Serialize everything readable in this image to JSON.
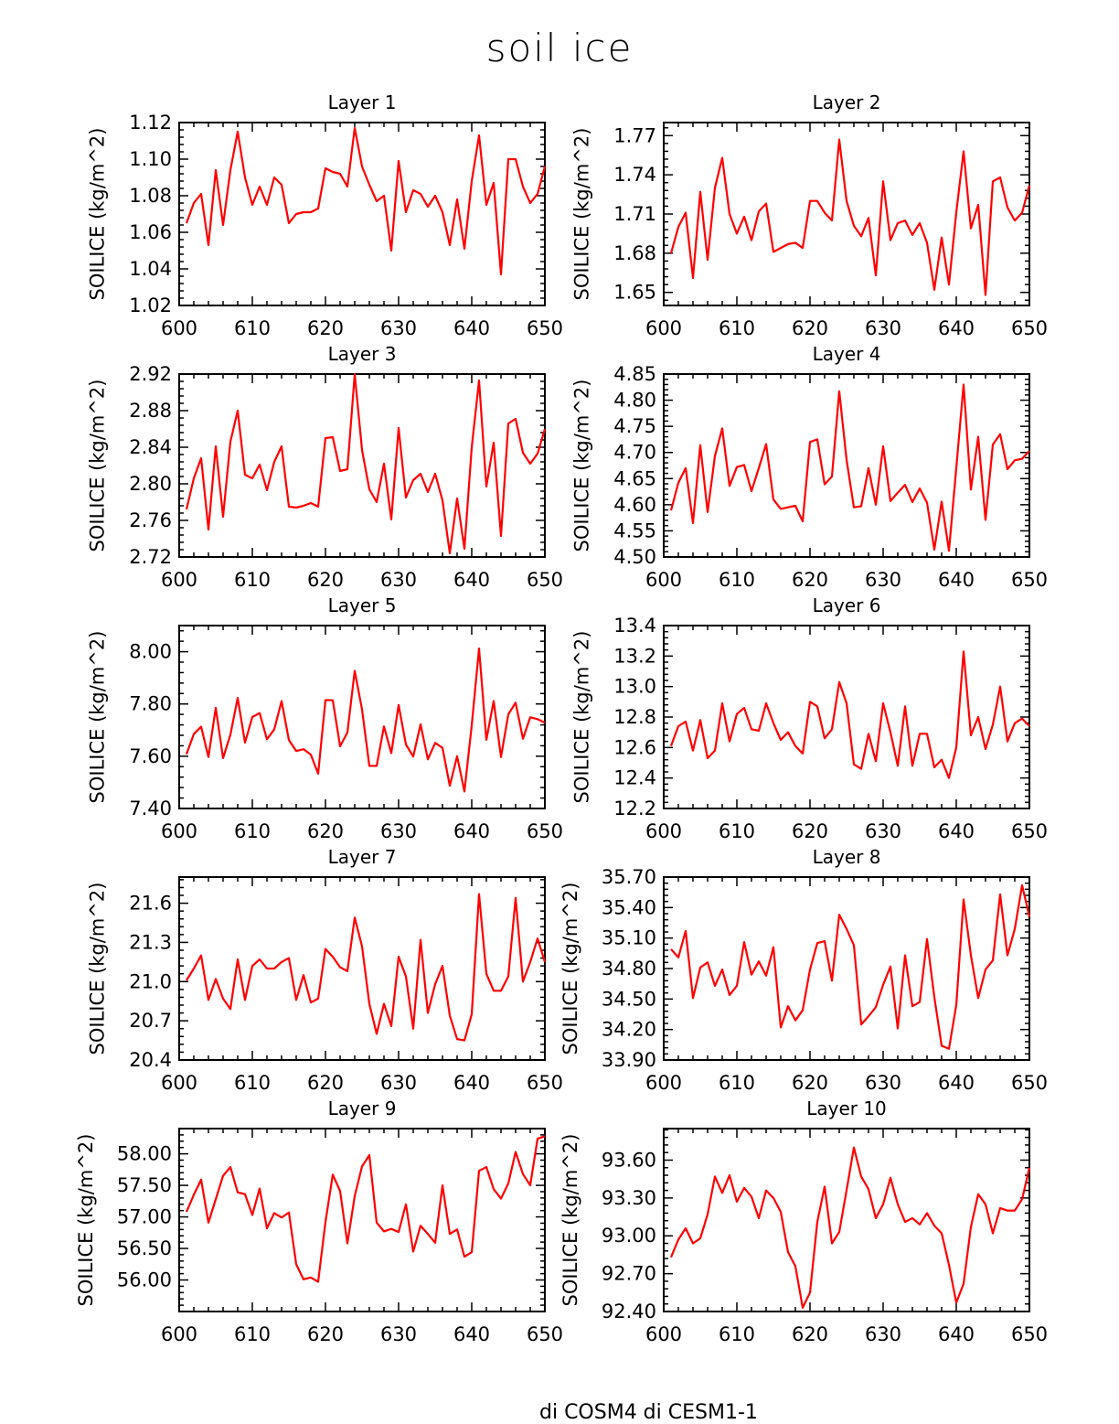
{
  "title": "soil ice",
  "legend_text": "di COSM4     di CESM1-1",
  "colors": {
    "line": "#ff0000",
    "axis": "#000000"
  },
  "chart_data": [
    {
      "type": "line",
      "title": "Layer 1",
      "xlabel": "",
      "ylabel": "SOILICE   (kg/m^2)",
      "xlim": [
        600,
        650
      ],
      "ylim": [
        1.02,
        1.12
      ],
      "xticks": [
        600,
        610,
        620,
        630,
        640,
        650
      ],
      "yticks": [
        1.02,
        1.04,
        1.06,
        1.08,
        1.1,
        1.12
      ],
      "ytick_labels": [
        "1.02",
        "1.04",
        "1.06",
        "1.08",
        "1.10",
        "1.12"
      ],
      "x_start": 601,
      "values": [
        1.065,
        1.076,
        1.081,
        1.053,
        1.094,
        1.064,
        1.094,
        1.115,
        1.09,
        1.075,
        1.085,
        1.075,
        1.09,
        1.086,
        1.065,
        1.07,
        1.071,
        1.071,
        1.073,
        1.095,
        1.093,
        1.092,
        1.085,
        1.117,
        1.096,
        1.086,
        1.077,
        1.08,
        1.05,
        1.099,
        1.071,
        1.083,
        1.081,
        1.074,
        1.08,
        1.071,
        1.053,
        1.078,
        1.051,
        1.088,
        1.113,
        1.075,
        1.087,
        1.037,
        1.1,
        1.1,
        1.085,
        1.076,
        1.081,
        1.096
      ]
    },
    {
      "type": "line",
      "title": "Layer 2",
      "xlabel": "",
      "ylabel": "SOILICE   (kg/m^2)",
      "xlim": [
        600,
        650
      ],
      "ylim": [
        1.64,
        1.78
      ],
      "xticks": [
        600,
        610,
        620,
        630,
        640,
        650
      ],
      "yticks": [
        1.65,
        1.68,
        1.71,
        1.74,
        1.77
      ],
      "ytick_labels": [
        "1.65",
        "1.68",
        "1.71",
        "1.74",
        "1.77"
      ],
      "x_start": 601,
      "values": [
        1.68,
        1.7,
        1.711,
        1.661,
        1.727,
        1.675,
        1.73,
        1.753,
        1.71,
        1.695,
        1.708,
        1.69,
        1.712,
        1.718,
        1.681,
        1.684,
        1.687,
        1.688,
        1.684,
        1.72,
        1.72,
        1.711,
        1.705,
        1.767,
        1.72,
        1.701,
        1.693,
        1.707,
        1.663,
        1.735,
        1.69,
        1.703,
        1.705,
        1.694,
        1.703,
        1.688,
        1.652,
        1.692,
        1.656,
        1.711,
        1.758,
        1.699,
        1.717,
        1.648,
        1.735,
        1.738,
        1.715,
        1.705,
        1.711,
        1.732
      ]
    },
    {
      "type": "line",
      "title": "Layer 3",
      "xlabel": "",
      "ylabel": "SOILICE   (kg/m^2)",
      "xlim": [
        600,
        650
      ],
      "ylim": [
        2.72,
        2.92
      ],
      "xticks": [
        600,
        610,
        620,
        630,
        640,
        650
      ],
      "yticks": [
        2.72,
        2.76,
        2.8,
        2.84,
        2.88,
        2.92
      ],
      "ytick_labels": [
        "2.72",
        "2.76",
        "2.80",
        "2.84",
        "2.88",
        "2.92"
      ],
      "x_start": 601,
      "values": [
        2.772,
        2.806,
        2.828,
        2.75,
        2.841,
        2.764,
        2.846,
        2.88,
        2.81,
        2.806,
        2.821,
        2.793,
        2.824,
        2.841,
        2.775,
        2.774,
        2.776,
        2.779,
        2.775,
        2.85,
        2.851,
        2.814,
        2.816,
        2.92,
        2.837,
        2.794,
        2.78,
        2.822,
        2.761,
        2.861,
        2.785,
        2.804,
        2.811,
        2.791,
        2.811,
        2.782,
        2.724,
        2.784,
        2.729,
        2.84,
        2.913,
        2.797,
        2.845,
        2.743,
        2.866,
        2.871,
        2.834,
        2.822,
        2.833,
        2.86
      ]
    },
    {
      "type": "line",
      "title": "Layer 4",
      "xlabel": "",
      "ylabel": "SOILICE   (kg/m^2)",
      "xlim": [
        600,
        650
      ],
      "ylim": [
        4.5,
        4.85
      ],
      "xticks": [
        600,
        610,
        620,
        630,
        640,
        650
      ],
      "yticks": [
        4.5,
        4.55,
        4.6,
        4.65,
        4.7,
        4.75,
        4.8,
        4.85
      ],
      "ytick_labels": [
        "4.50",
        "4.55",
        "4.60",
        "4.65",
        "4.70",
        "4.75",
        "4.80",
        "4.85"
      ],
      "x_start": 601,
      "values": [
        4.589,
        4.642,
        4.67,
        4.565,
        4.714,
        4.586,
        4.693,
        4.746,
        4.636,
        4.672,
        4.676,
        4.626,
        4.67,
        4.716,
        4.61,
        4.592,
        4.595,
        4.598,
        4.568,
        4.72,
        4.725,
        4.639,
        4.654,
        4.817,
        4.686,
        4.595,
        4.597,
        4.67,
        4.6,
        4.712,
        4.607,
        4.623,
        4.638,
        4.605,
        4.631,
        4.604,
        4.514,
        4.606,
        4.512,
        4.67,
        4.83,
        4.629,
        4.73,
        4.571,
        4.715,
        4.735,
        4.668,
        4.685,
        4.688,
        4.703
      ]
    },
    {
      "type": "line",
      "title": "Layer 5",
      "xlabel": "",
      "ylabel": "SOILICE   (kg/m^2)",
      "xlim": [
        600,
        650
      ],
      "ylim": [
        7.4,
        8.1
      ],
      "xticks": [
        600,
        610,
        620,
        630,
        640,
        650
      ],
      "yticks": [
        7.4,
        7.6,
        7.8,
        8.0
      ],
      "ytick_labels": [
        "7.40",
        "7.60",
        "7.80",
        "8.00"
      ],
      "x_start": 601,
      "values": [
        7.608,
        7.685,
        7.713,
        7.597,
        7.785,
        7.593,
        7.682,
        7.823,
        7.652,
        7.75,
        7.765,
        7.665,
        7.703,
        7.811,
        7.662,
        7.62,
        7.627,
        7.606,
        7.533,
        7.815,
        7.814,
        7.638,
        7.691,
        7.927,
        7.779,
        7.563,
        7.563,
        7.714,
        7.612,
        7.796,
        7.645,
        7.599,
        7.722,
        7.588,
        7.651,
        7.632,
        7.487,
        7.6,
        7.465,
        7.718,
        8.012,
        7.663,
        7.811,
        7.597,
        7.76,
        7.805,
        7.667,
        7.749,
        7.742,
        7.728
      ]
    },
    {
      "type": "line",
      "title": "Layer 6",
      "xlabel": "",
      "ylabel": "SOILICE   (kg/m^2)",
      "xlim": [
        600,
        650
      ],
      "ylim": [
        12.2,
        13.4
      ],
      "xticks": [
        600,
        610,
        620,
        630,
        640,
        650
      ],
      "yticks": [
        12.2,
        12.4,
        12.6,
        12.8,
        13.0,
        13.2,
        13.4
      ],
      "ytick_labels": [
        "12.2",
        "12.4",
        "12.6",
        "12.8",
        "13.0",
        "13.2",
        "13.4"
      ],
      "x_start": 601,
      "values": [
        12.61,
        12.74,
        12.77,
        12.58,
        12.78,
        12.53,
        12.58,
        12.89,
        12.64,
        12.82,
        12.86,
        12.72,
        12.71,
        12.89,
        12.76,
        12.65,
        12.7,
        12.61,
        12.56,
        12.9,
        12.87,
        12.66,
        12.72,
        13.03,
        12.89,
        12.49,
        12.46,
        12.69,
        12.51,
        12.89,
        12.7,
        12.48,
        12.87,
        12.48,
        12.69,
        12.69,
        12.47,
        12.52,
        12.4,
        12.6,
        13.23,
        12.68,
        12.8,
        12.59,
        12.75,
        13.0,
        12.64,
        12.76,
        12.79,
        12.74
      ]
    },
    {
      "type": "line",
      "title": "Layer 7",
      "xlabel": "",
      "ylabel": "SOILICE   (kg/m^2)",
      "xlim": [
        600,
        650
      ],
      "ylim": [
        20.4,
        21.8
      ],
      "xticks": [
        600,
        610,
        620,
        630,
        640,
        650
      ],
      "yticks": [
        20.4,
        20.7,
        21.0,
        21.3,
        21.6
      ],
      "ytick_labels": [
        "20.4",
        "20.7",
        "21.0",
        "21.3",
        "21.6"
      ],
      "x_start": 601,
      "values": [
        21.01,
        21.1,
        21.2,
        20.86,
        21.02,
        20.87,
        20.79,
        21.17,
        20.86,
        21.12,
        21.17,
        21.1,
        21.1,
        21.15,
        21.18,
        20.86,
        21.05,
        20.84,
        20.87,
        21.25,
        21.19,
        21.11,
        21.08,
        21.49,
        21.27,
        20.83,
        20.6,
        20.83,
        20.66,
        21.19,
        21.04,
        20.64,
        21.32,
        20.76,
        20.98,
        21.12,
        20.74,
        20.56,
        20.55,
        20.75,
        21.67,
        21.06,
        20.93,
        20.93,
        21.04,
        21.64,
        21.0,
        21.15,
        21.33,
        21.15
      ]
    },
    {
      "type": "line",
      "title": "Layer 8",
      "xlabel": "",
      "ylabel": "SOILICE   (kg/m^2)",
      "xlim": [
        600,
        650
      ],
      "ylim": [
        33.9,
        35.7
      ],
      "xticks": [
        600,
        610,
        620,
        630,
        640,
        650
      ],
      "yticks": [
        33.9,
        34.2,
        34.5,
        34.8,
        35.1,
        35.4,
        35.7
      ],
      "ytick_labels": [
        "33.90",
        "34.20",
        "34.50",
        "34.80",
        "35.10",
        "35.40",
        "35.70"
      ],
      "x_start": 601,
      "values": [
        34.99,
        34.91,
        35.17,
        34.51,
        34.81,
        34.86,
        34.63,
        34.79,
        34.54,
        34.63,
        35.06,
        34.74,
        34.87,
        34.73,
        35.01,
        34.22,
        34.43,
        34.29,
        34.39,
        34.79,
        35.05,
        35.07,
        34.68,
        35.33,
        35.19,
        35.03,
        34.25,
        34.33,
        34.42,
        34.64,
        34.82,
        34.21,
        34.93,
        34.43,
        34.47,
        35.09,
        34.52,
        34.04,
        34.01,
        34.44,
        35.48,
        34.93,
        34.51,
        34.79,
        34.88,
        35.53,
        34.93,
        35.19,
        35.62,
        35.31
      ]
    },
    {
      "type": "line",
      "title": "Layer 9",
      "xlabel": "",
      "ylabel": "SOILICE   (kg/m^2)",
      "xlim": [
        600,
        650
      ],
      "ylim": [
        55.5,
        58.4
      ],
      "xticks": [
        600,
        610,
        620,
        630,
        640,
        650
      ],
      "yticks": [
        56.0,
        56.5,
        57.0,
        57.5,
        58.0
      ],
      "ytick_labels": [
        "56.00",
        "56.50",
        "57.00",
        "57.50",
        "58.00"
      ],
      "x_start": 601,
      "values": [
        57.08,
        57.35,
        57.59,
        56.91,
        57.28,
        57.65,
        57.79,
        57.39,
        57.36,
        57.03,
        57.45,
        56.82,
        57.06,
        56.99,
        57.07,
        56.25,
        56.01,
        56.04,
        55.97,
        56.92,
        57.67,
        57.41,
        56.58,
        57.33,
        57.8,
        57.98,
        56.91,
        56.77,
        56.81,
        56.76,
        57.2,
        56.45,
        56.86,
        56.73,
        56.59,
        57.5,
        56.73,
        56.8,
        56.37,
        56.44,
        57.73,
        57.79,
        57.44,
        57.29,
        57.53,
        58.03,
        57.68,
        57.5,
        58.24,
        58.28
      ]
    },
    {
      "type": "line",
      "title": "Layer 10",
      "xlabel": "",
      "ylabel": "SOILICE   (kg/m^2)",
      "xlim": [
        600,
        650
      ],
      "ylim": [
        92.4,
        93.85
      ],
      "xticks": [
        600,
        610,
        620,
        630,
        640,
        650
      ],
      "yticks": [
        92.4,
        92.7,
        93.0,
        93.3,
        93.6
      ],
      "ytick_labels": [
        "92.40",
        "92.70",
        "93.00",
        "93.30",
        "93.60"
      ],
      "x_start": 601,
      "values": [
        92.83,
        92.97,
        93.06,
        92.94,
        92.98,
        93.17,
        93.47,
        93.34,
        93.48,
        93.27,
        93.38,
        93.31,
        93.14,
        93.36,
        93.3,
        93.19,
        92.87,
        92.76,
        92.43,
        92.55,
        93.11,
        93.39,
        92.94,
        93.03,
        93.36,
        93.7,
        93.47,
        93.37,
        93.14,
        93.25,
        93.46,
        93.25,
        93.11,
        93.14,
        93.09,
        93.18,
        93.08,
        93.02,
        92.77,
        92.47,
        92.62,
        93.07,
        93.33,
        93.25,
        93.02,
        93.22,
        93.2,
        93.2,
        93.29,
        93.54
      ]
    }
  ]
}
